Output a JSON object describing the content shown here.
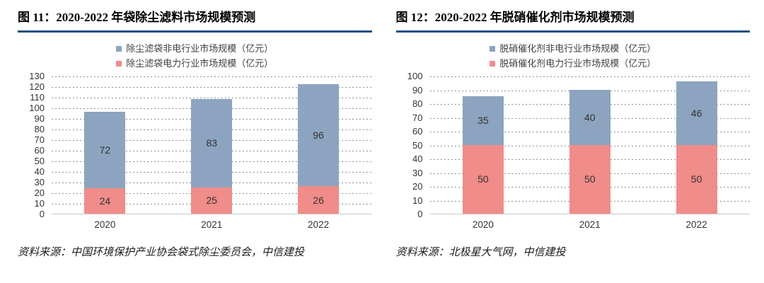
{
  "colors": {
    "title_rule": "#1f5181",
    "nonpower_blue": "#8ca4bf",
    "power_red": "#f08c89",
    "gridline_gray": "#909090"
  },
  "chart_data": [
    {
      "type": "bar",
      "stacked": true,
      "title": "图 11：2020-2022 年袋除尘滤料市场规模预测",
      "categories": [
        "2020",
        "2021",
        "2022"
      ],
      "series": [
        {
          "name": "除尘滤袋非电行业市场规模（亿元）",
          "color": "#8ca4bf",
          "values": [
            72,
            83,
            96
          ]
        },
        {
          "name": "除尘滤袋电力行业市场规模（亿元）",
          "color": "#f08c89",
          "values": [
            24,
            25,
            26
          ]
        }
      ],
      "ylim": [
        0,
        130
      ],
      "ytick_step": 10,
      "grid": true,
      "legend_position": "top",
      "source": "资料来源：中国环境保护产业协会袋式除尘委员会，中信建投"
    },
    {
      "type": "bar",
      "stacked": true,
      "title": "图 12：2020-2022 年脱硝催化剂市场规模预测",
      "categories": [
        "2020",
        "2021",
        "2022"
      ],
      "series": [
        {
          "name": "脱硝催化剂非电行业市场规模（亿元）",
          "color": "#8ca4bf",
          "values": [
            35,
            40,
            46
          ]
        },
        {
          "name": "脱硝催化剂电力行业市场规模（亿元）",
          "color": "#f08c89",
          "values": [
            50,
            50,
            50
          ]
        }
      ],
      "ylim": [
        0,
        100
      ],
      "ytick_step": 10,
      "grid": true,
      "legend_position": "top",
      "source": "资料来源：北极星大气网，中信建投"
    }
  ]
}
